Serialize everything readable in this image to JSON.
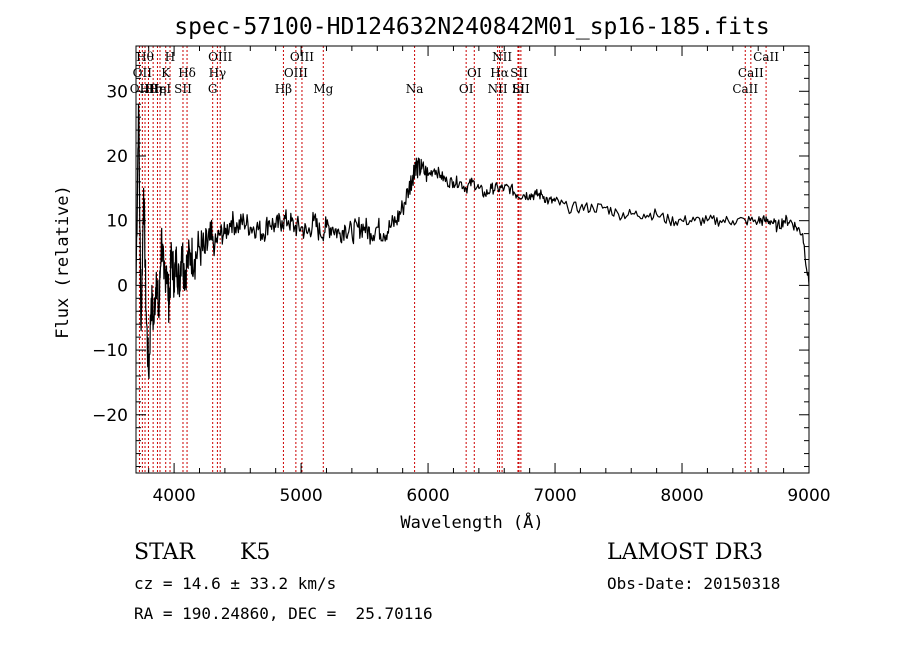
{
  "chart_data": {
    "type": "line",
    "title": "spec-57100-HD124632N240842M01_sp16-185.fits",
    "xlabel": "Wavelength (Å)",
    "ylabel": "Flux (relative)",
    "xlim": [
      3700,
      9000
    ],
    "ylim": [
      -29,
      37
    ],
    "xticks": [
      4000,
      5000,
      6000,
      7000,
      8000,
      9000
    ],
    "yticks": [
      -20,
      -10,
      0,
      10,
      20,
      30
    ],
    "series": [
      {
        "name": "flux",
        "x": [
          3700,
          3720,
          3740,
          3760,
          3780,
          3800,
          3820,
          3840,
          3860,
          3880,
          3900,
          3920,
          3940,
          3960,
          3980,
          4000,
          4020,
          4040,
          4060,
          4080,
          4100,
          4130,
          4160,
          4200,
          4240,
          4280,
          4320,
          4360,
          4400,
          4450,
          4500,
          4550,
          4600,
          4650,
          4700,
          4750,
          4800,
          4850,
          4900,
          4950,
          5000,
          5050,
          5100,
          5150,
          5200,
          5250,
          5300,
          5350,
          5400,
          5450,
          5500,
          5550,
          5600,
          5650,
          5700,
          5750,
          5800,
          5850,
          5880,
          5900,
          5920,
          5950,
          6000,
          6050,
          6100,
          6150,
          6200,
          6250,
          6300,
          6350,
          6400,
          6450,
          6500,
          6550,
          6600,
          6650,
          6700,
          6750,
          6800,
          6850,
          6900,
          6950,
          7000,
          7100,
          7200,
          7300,
          7400,
          7500,
          7600,
          7700,
          7800,
          7900,
          8000,
          8100,
          8200,
          8300,
          8400,
          8500,
          8600,
          8650,
          8700,
          8750,
          8800,
          8850,
          8900,
          8950,
          9000
        ],
        "y": [
          0,
          28,
          -7,
          15,
          -4,
          -14,
          -2,
          -6,
          2,
          -5,
          8,
          1,
          3,
          -3,
          5,
          1,
          4,
          0,
          6,
          2,
          3,
          5,
          4,
          6,
          5,
          7,
          6,
          8,
          8,
          10,
          9,
          10,
          9,
          9,
          8,
          10,
          9,
          10,
          10,
          9,
          9,
          8,
          10,
          8,
          9,
          9,
          8,
          9,
          8,
          9,
          9,
          8,
          9,
          8,
          9,
          10,
          12,
          15,
          17,
          19,
          18,
          18,
          17,
          18,
          17,
          16,
          16,
          16,
          15,
          16,
          15,
          14,
          15,
          15,
          15,
          15,
          14,
          14,
          14,
          14,
          14,
          13,
          13,
          12,
          12,
          12,
          12,
          11,
          11,
          11,
          11,
          10,
          10,
          10,
          10,
          10,
          10,
          10,
          10,
          10,
          10,
          9,
          10,
          10,
          9,
          8,
          0
        ]
      }
    ],
    "lines": [
      {
        "x": 3727,
        "label": "OII"
      },
      {
        "x": 3750,
        "label": "OII"
      },
      {
        "x": 3771,
        "label": "Hθ"
      },
      {
        "x": 3798,
        "label": "Hθ"
      },
      {
        "x": 3835,
        "label": "Hη"
      },
      {
        "x": 3869,
        "label": "Hη"
      },
      {
        "x": 3889,
        "label": "HeI"
      },
      {
        "x": 3934,
        "label": "K"
      },
      {
        "x": 3968,
        "label": "H"
      },
      {
        "x": 4070,
        "label": "SII"
      },
      {
        "x": 4102,
        "label": "Hδ"
      },
      {
        "x": 4304,
        "label": "G"
      },
      {
        "x": 4341,
        "label": "Hγ"
      },
      {
        "x": 4363,
        "label": "OIII"
      },
      {
        "x": 4861,
        "label": "Hβ"
      },
      {
        "x": 4959,
        "label": "OIII"
      },
      {
        "x": 5007,
        "label": "OIII"
      },
      {
        "x": 5175,
        "label": "Mg"
      },
      {
        "x": 5894,
        "label": "Na"
      },
      {
        "x": 6300,
        "label": "OI"
      },
      {
        "x": 6364,
        "label": "OI"
      },
      {
        "x": 6548,
        "label": "NII"
      },
      {
        "x": 6563,
        "label": "Hα"
      },
      {
        "x": 6583,
        "label": "NII"
      },
      {
        "x": 6708,
        "label": "Li"
      },
      {
        "x": 6716,
        "label": "SII"
      },
      {
        "x": 6731,
        "label": "SII"
      },
      {
        "x": 8498,
        "label": "CaII"
      },
      {
        "x": 8542,
        "label": "CaII"
      },
      {
        "x": 8662,
        "label": "CaII"
      }
    ]
  },
  "info": {
    "object_class": "STAR",
    "subclass": "K5",
    "survey": "LAMOST DR3",
    "cz": "cz = 14.6 ± 33.2 km/s",
    "obs_date": "Obs-Date: 20150318",
    "coords": "RA = 190.24860, DEC =  25.70116"
  },
  "colors": {
    "line_marker": "#cc0000",
    "spectrum": "#000000",
    "axes": "#000000"
  }
}
